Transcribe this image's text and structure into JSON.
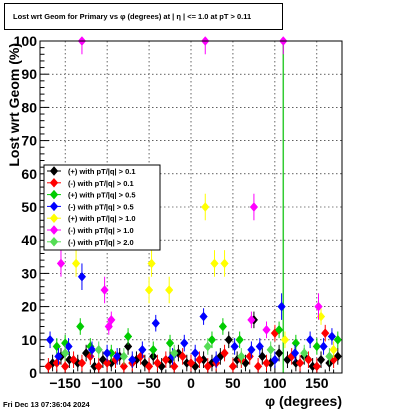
{
  "title": "Lost wrt Geom for Primary vs φ (degrees) at | η | <= 1.0 at pT > 0.11",
  "footer_timestamp": "Fri Dec 13 07:36:04 2024",
  "chart_data": {
    "type": "scatter",
    "xlabel": "φ (degrees)",
    "ylabel": "Lost wrt Geom (%)",
    "xlim": [
      -180,
      180
    ],
    "ylim": [
      0,
      100
    ],
    "x_ticks": [
      -150,
      -100,
      -50,
      0,
      50,
      100,
      150
    ],
    "y_ticks": [
      0,
      10,
      20,
      30,
      40,
      50,
      60,
      70,
      80,
      90,
      100
    ],
    "grid": true,
    "legend_position": "middle-left",
    "vertical_line_x": 110,
    "series": [
      {
        "name": "(+) with pT/|q| > 0.1",
        "color": "#000000",
        "points": [
          [
            -165,
            3
          ],
          [
            -155,
            5
          ],
          [
            -145,
            4
          ],
          [
            -135,
            3
          ],
          [
            -125,
            6
          ],
          [
            -115,
            2
          ],
          [
            -105,
            4
          ],
          [
            -95,
            3
          ],
          [
            -85,
            5
          ],
          [
            -75,
            8
          ],
          [
            -65,
            4
          ],
          [
            -55,
            3
          ],
          [
            -45,
            5
          ],
          [
            -35,
            2
          ],
          [
            -25,
            4
          ],
          [
            -15,
            6
          ],
          [
            -5,
            3
          ],
          [
            5,
            2
          ],
          [
            15,
            4
          ],
          [
            25,
            3
          ],
          [
            35,
            5
          ],
          [
            45,
            10
          ],
          [
            55,
            4
          ],
          [
            65,
            3
          ],
          [
            75,
            16
          ],
          [
            85,
            5
          ],
          [
            95,
            3
          ],
          [
            105,
            6
          ],
          [
            115,
            4
          ],
          [
            125,
            3
          ],
          [
            135,
            5
          ],
          [
            145,
            2
          ],
          [
            155,
            4
          ],
          [
            165,
            3
          ],
          [
            175,
            5
          ]
        ]
      },
      {
        "name": "(-) with pT/|q| > 0.1",
        "color": "#ff0000",
        "points": [
          [
            -170,
            2
          ],
          [
            -160,
            3
          ],
          [
            -150,
            2
          ],
          [
            -140,
            4
          ],
          [
            -130,
            3
          ],
          [
            -120,
            5
          ],
          [
            -110,
            2
          ],
          [
            -100,
            3
          ],
          [
            -90,
            4
          ],
          [
            -80,
            2
          ],
          [
            -70,
            3
          ],
          [
            -60,
            5
          ],
          [
            -50,
            2
          ],
          [
            -40,
            3
          ],
          [
            -30,
            4
          ],
          [
            -20,
            2
          ],
          [
            -10,
            5
          ],
          [
            0,
            3
          ],
          [
            10,
            4
          ],
          [
            20,
            2
          ],
          [
            30,
            3
          ],
          [
            40,
            6
          ],
          [
            50,
            2
          ],
          [
            60,
            4
          ],
          [
            70,
            5
          ],
          [
            80,
            2
          ],
          [
            90,
            3
          ],
          [
            100,
            12
          ],
          [
            120,
            5
          ],
          [
            130,
            3
          ],
          [
            140,
            4
          ],
          [
            150,
            2
          ],
          [
            160,
            12
          ],
          [
            170,
            4
          ]
        ]
      },
      {
        "name": "(+) with pT/|q| > 0.5",
        "color": "#00cc00",
        "points": [
          [
            -160,
            8
          ],
          [
            -150,
            9
          ],
          [
            -132,
            14
          ],
          [
            -120,
            8
          ],
          [
            -95,
            6
          ],
          [
            -75,
            11
          ],
          [
            -45,
            7
          ],
          [
            -25,
            9
          ],
          [
            25,
            10
          ],
          [
            38,
            14
          ],
          [
            58,
            10
          ],
          [
            105,
            13
          ],
          [
            125,
            9
          ],
          [
            150,
            8
          ],
          [
            175,
            10
          ]
        ]
      },
      {
        "name": "(-) with pT/|q| > 0.5",
        "color": "#0000ff",
        "points": [
          [
            -168,
            10
          ],
          [
            -158,
            5
          ],
          [
            -146,
            8
          ],
          [
            -130,
            29
          ],
          [
            -118,
            7
          ],
          [
            -100,
            6
          ],
          [
            -88,
            5
          ],
          [
            -70,
            4
          ],
          [
            -58,
            7
          ],
          [
            -42,
            15
          ],
          [
            -22,
            5
          ],
          [
            -8,
            9
          ],
          [
            5,
            6
          ],
          [
            15,
            17
          ],
          [
            30,
            4
          ],
          [
            52,
            8
          ],
          [
            72,
            7
          ],
          [
            82,
            8
          ],
          [
            100,
            4
          ],
          [
            108,
            20
          ],
          [
            124,
            6
          ],
          [
            142,
            10
          ],
          [
            158,
            8
          ],
          [
            168,
            11
          ]
        ]
      },
      {
        "name": "(+) with pT/|q| > 1.0",
        "color": "#ffff00",
        "points": [
          [
            -137,
            33
          ],
          [
            -50,
            25
          ],
          [
            -47,
            33
          ],
          [
            -26,
            25
          ],
          [
            17,
            50
          ],
          [
            28,
            33
          ],
          [
            40,
            33
          ],
          [
            112,
            10
          ],
          [
            155,
            17
          ],
          [
            170,
            7
          ]
        ]
      },
      {
        "name": "(-) with pT/|q| > 1.0",
        "color": "#ff00ff",
        "points": [
          [
            -155,
            33
          ],
          [
            -130,
            100
          ],
          [
            -103,
            25
          ],
          [
            -95,
            16
          ],
          [
            -98,
            14
          ],
          [
            17,
            100
          ],
          [
            75,
            50
          ],
          [
            110,
            100
          ],
          [
            152,
            20
          ],
          [
            72,
            16
          ],
          [
            90,
            13
          ]
        ]
      },
      {
        "name": "(-) with pT/|q| > 2.0",
        "color": "#55dd55",
        "points": [
          [
            -150,
            6
          ],
          [
            -110,
            7
          ],
          [
            -80,
            5
          ],
          [
            -20,
            6
          ],
          [
            20,
            8
          ],
          [
            60,
            5
          ],
          [
            95,
            7
          ],
          [
            135,
            6
          ],
          [
            165,
            5
          ]
        ]
      }
    ]
  }
}
